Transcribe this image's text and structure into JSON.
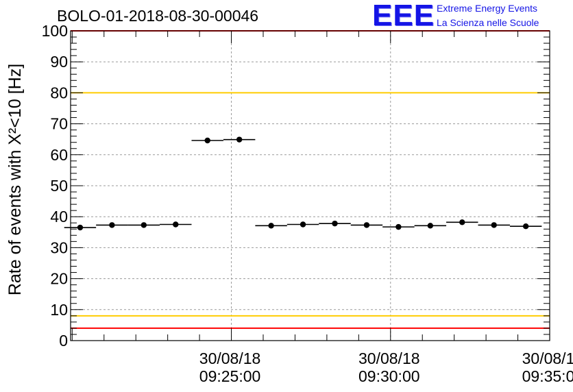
{
  "header": {
    "run_title": "BOLO-01-2018-08-30-00046"
  },
  "logo": {
    "mark": "EEE",
    "line1": "Extreme Energy Events",
    "line2": "La Scienza nelle Scuole",
    "color": "#1414e6"
  },
  "chart_data": {
    "type": "scatter",
    "title": "BOLO-01-2018-08-30-00046",
    "ylabel": "Rate of events with X²<10 [Hz]",
    "xlabel": "",
    "ylim": [
      0,
      100
    ],
    "yticks": [
      0,
      10,
      20,
      30,
      40,
      50,
      60,
      70,
      80,
      90,
      100
    ],
    "xlim": [
      "09:19:57",
      "09:35:00"
    ],
    "x_tick_labels": [
      {
        "date": "30/08/18",
        "time": "09:25:00"
      },
      {
        "date": "30/08/18",
        "time": "09:30:00"
      },
      {
        "date": "30/08/1",
        "time": "09:35:0"
      }
    ],
    "grid": true,
    "bin_width_s": 60,
    "series": [
      {
        "marker": "filled-circle",
        "color": "#000000",
        "points": [
          {
            "x": "09:20:15",
            "y": 36.5
          },
          {
            "x": "09:21:15",
            "y": 37.3
          },
          {
            "x": "09:22:15",
            "y": 37.3
          },
          {
            "x": "09:23:15",
            "y": 37.5
          },
          {
            "x": "09:24:15",
            "y": 64.6
          },
          {
            "x": "09:25:15",
            "y": 64.9
          },
          {
            "x": "09:26:15",
            "y": 37.1
          },
          {
            "x": "09:27:15",
            "y": 37.5
          },
          {
            "x": "09:28:15",
            "y": 37.8
          },
          {
            "x": "09:29:15",
            "y": 37.3
          },
          {
            "x": "09:30:15",
            "y": 36.7
          },
          {
            "x": "09:31:15",
            "y": 37.1
          },
          {
            "x": "09:32:15",
            "y": 38.2
          },
          {
            "x": "09:33:15",
            "y": 37.3
          },
          {
            "x": "09:34:15",
            "y": 36.9
          }
        ]
      }
    ],
    "reference_lines": [
      {
        "y": 100,
        "color": "#ff0000"
      },
      {
        "y": 80,
        "color": "#ffcc00"
      },
      {
        "y": 8,
        "color": "#ffcc00"
      },
      {
        "y": 4,
        "color": "#ff0000"
      }
    ]
  }
}
